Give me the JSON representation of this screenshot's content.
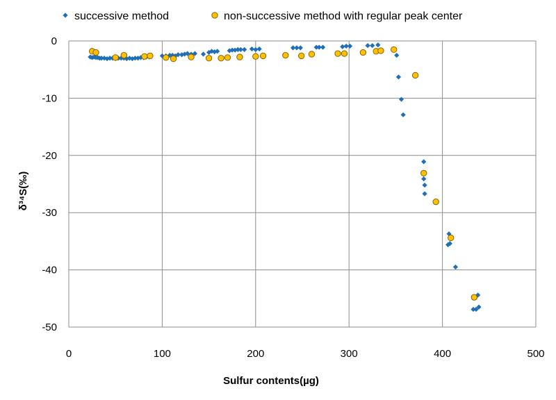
{
  "chart_data": {
    "type": "scatter",
    "title": "",
    "xlabel": "Sulfur contents(µg)",
    "ylabel": "δ³⁴S(‰)",
    "xlim": [
      0,
      500
    ],
    "ylim": [
      -50,
      0
    ],
    "xticks": [
      0,
      100,
      200,
      300,
      400,
      500
    ],
    "yticks": [
      0,
      -10,
      -20,
      -30,
      -40,
      -50
    ],
    "grid": true,
    "legend_position": "top",
    "series": [
      {
        "name": "successive method",
        "marker": "diamond",
        "color": "#1f6fb8",
        "points": [
          [
            23,
            -2.8
          ],
          [
            25,
            -2.9
          ],
          [
            27,
            -2.8
          ],
          [
            29,
            -2.9
          ],
          [
            31,
            -2.9
          ],
          [
            33,
            -3.0
          ],
          [
            35,
            -3.0
          ],
          [
            38,
            -3.0
          ],
          [
            41,
            -3.1
          ],
          [
            44,
            -3.0
          ],
          [
            47,
            -3.0
          ],
          [
            50,
            -3.1
          ],
          [
            53,
            -3.0
          ],
          [
            56,
            -3.0
          ],
          [
            59,
            -3.0
          ],
          [
            62,
            -3.1
          ],
          [
            65,
            -3.0
          ],
          [
            68,
            -3.1
          ],
          [
            71,
            -3.0
          ],
          [
            74,
            -3.0
          ],
          [
            77,
            -2.9
          ],
          [
            80,
            -2.9
          ],
          [
            83,
            -2.8
          ],
          [
            86,
            -2.8
          ],
          [
            100,
            -2.6
          ],
          [
            104,
            -2.6
          ],
          [
            108,
            -2.5
          ],
          [
            111,
            -2.5
          ],
          [
            114,
            -2.6
          ],
          [
            117,
            -2.4
          ],
          [
            121,
            -2.4
          ],
          [
            124,
            -2.3
          ],
          [
            127,
            -2.2
          ],
          [
            131,
            -2.3
          ],
          [
            135,
            -2.2
          ],
          [
            144,
            -2.3
          ],
          [
            150,
            -2.0
          ],
          [
            153,
            -1.8
          ],
          [
            156,
            -1.9
          ],
          [
            159,
            -1.8
          ],
          [
            172,
            -1.7
          ],
          [
            175,
            -1.6
          ],
          [
            178,
            -1.6
          ],
          [
            181,
            -1.5
          ],
          [
            184,
            -1.5
          ],
          [
            188,
            -1.5
          ],
          [
            196,
            -1.4
          ],
          [
            200,
            -1.5
          ],
          [
            204,
            -1.4
          ],
          [
            240,
            -1.2
          ],
          [
            244,
            -1.2
          ],
          [
            248,
            -1.2
          ],
          [
            265,
            -1.1
          ],
          [
            268,
            -1.1
          ],
          [
            272,
            -1.1
          ],
          [
            293,
            -1.0
          ],
          [
            297,
            -0.9
          ],
          [
            301,
            -0.9
          ],
          [
            320,
            -0.8
          ],
          [
            325,
            -0.8
          ],
          [
            331,
            -0.7
          ],
          [
            351,
            -2.5
          ],
          [
            353,
            -6.3
          ],
          [
            356,
            -10.2
          ],
          [
            358,
            -12.9
          ],
          [
            380,
            -21.1
          ],
          [
            380,
            -24.1
          ],
          [
            381,
            -25.2
          ],
          [
            381,
            -26.7
          ],
          [
            406,
            -35.6
          ],
          [
            407,
            -33.7
          ],
          [
            408,
            -35.4
          ],
          [
            414,
            -39.5
          ],
          [
            433,
            -46.9
          ],
          [
            436,
            -46.9
          ],
          [
            438,
            -44.4
          ],
          [
            439,
            -46.5
          ]
        ]
      },
      {
        "name": "non-successive method with regular peak center",
        "marker": "circle",
        "color": "#ffc000",
        "points": [
          [
            25,
            -1.8
          ],
          [
            29,
            -2.0
          ],
          [
            50,
            -2.9
          ],
          [
            59,
            -2.5
          ],
          [
            81,
            -2.7
          ],
          [
            87,
            -2.6
          ],
          [
            104,
            -2.9
          ],
          [
            112,
            -3.1
          ],
          [
            131,
            -2.8
          ],
          [
            150,
            -3.0
          ],
          [
            163,
            -3.0
          ],
          [
            170,
            -2.9
          ],
          [
            183,
            -2.8
          ],
          [
            200,
            -2.7
          ],
          [
            208,
            -2.6
          ],
          [
            232,
            -2.5
          ],
          [
            249,
            -2.6
          ],
          [
            260,
            -2.3
          ],
          [
            288,
            -2.2
          ],
          [
            295,
            -2.2
          ],
          [
            315,
            -2.0
          ],
          [
            329,
            -1.8
          ],
          [
            334,
            -1.7
          ],
          [
            348,
            -1.5
          ],
          [
            371,
            -6.0
          ],
          [
            380,
            -23.1
          ],
          [
            393,
            -28.1
          ],
          [
            409,
            -34.4
          ],
          [
            434,
            -44.8
          ]
        ]
      }
    ]
  }
}
